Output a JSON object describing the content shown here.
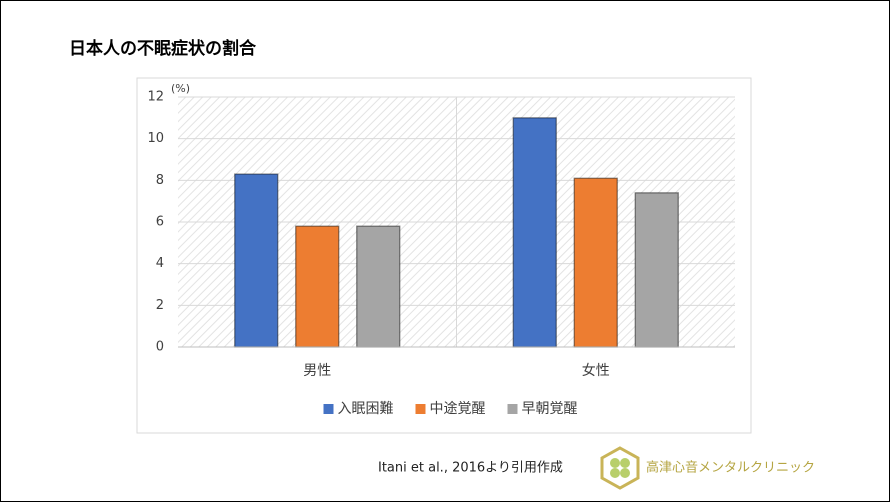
{
  "chart_data": {
    "type": "bar",
    "title": "日本人の不眠症状の割合",
    "y_unit": "(%)",
    "categories": [
      "男性",
      "女性"
    ],
    "series": [
      {
        "name": "入眠困難",
        "color": "#4472c4",
        "values": [
          8.3,
          11.0
        ]
      },
      {
        "name": "中途覚醒",
        "color": "#ed7d31",
        "values": [
          5.8,
          8.1
        ]
      },
      {
        "name": "早朝覚醒",
        "color": "#a5a5a5",
        "values": [
          5.8,
          7.4
        ]
      }
    ],
    "ylim": [
      0,
      12
    ],
    "yticks": [
      0,
      2,
      4,
      6,
      8,
      10,
      12
    ],
    "grid": true,
    "legend": "bottom"
  },
  "footer": {
    "citation": "Itani et al., 2016より引用作成",
    "clinic": "高津心音メンタルクリニック"
  }
}
